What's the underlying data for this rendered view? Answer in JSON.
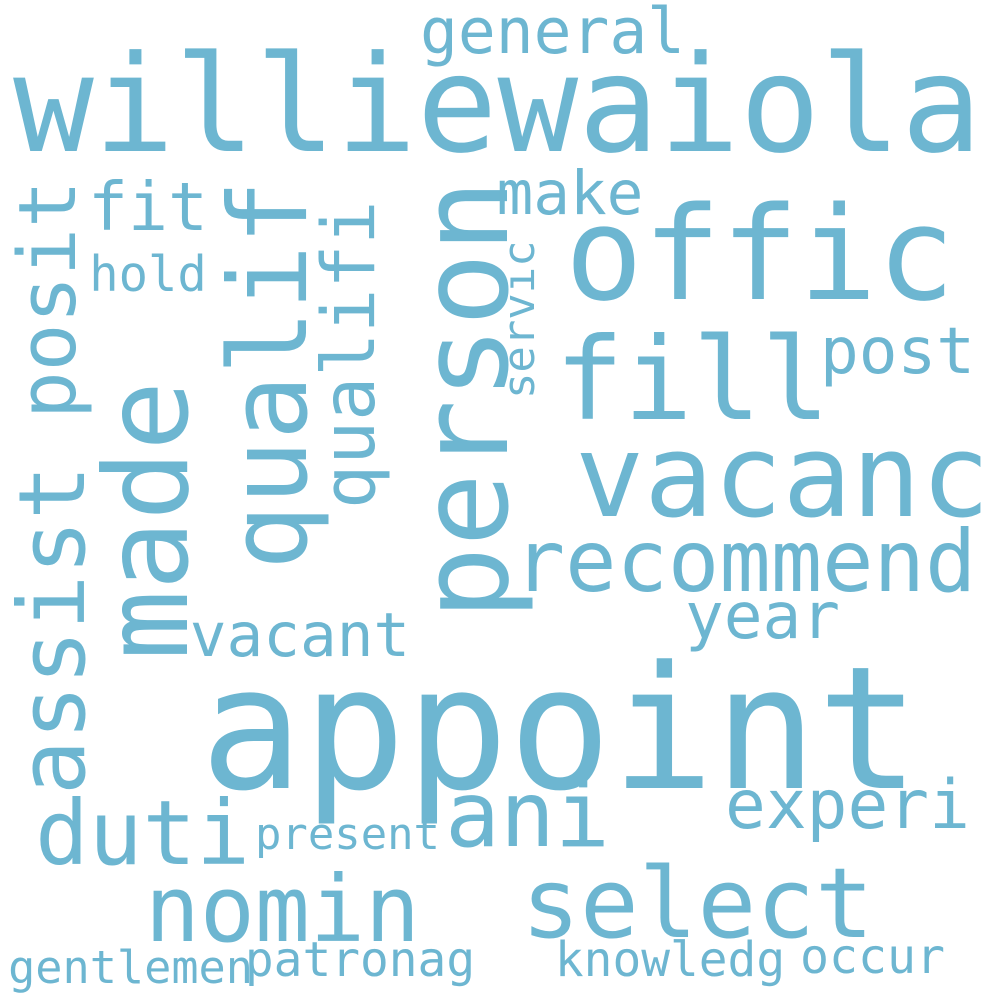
{
  "colors": {
    "background": "#ffffff",
    "word": "#6db6d1"
  },
  "words": [
    {
      "text": "williewaiola",
      "orientation": "horizontal"
    },
    {
      "text": "appoint",
      "orientation": "horizontal"
    },
    {
      "text": "offic",
      "orientation": "horizontal"
    },
    {
      "text": "fill",
      "orientation": "horizontal"
    },
    {
      "text": "vacanc",
      "orientation": "horizontal"
    },
    {
      "text": "person",
      "orientation": "vertical"
    },
    {
      "text": "recommend",
      "orientation": "horizontal"
    },
    {
      "text": "select",
      "orientation": "horizontal"
    },
    {
      "text": "made",
      "orientation": "vertical"
    },
    {
      "text": "qualif",
      "orientation": "vertical"
    },
    {
      "text": "qualifi",
      "orientation": "vertical"
    },
    {
      "text": "posit",
      "orientation": "vertical"
    },
    {
      "text": "assist",
      "orientation": "vertical"
    },
    {
      "text": "nomin",
      "orientation": "horizontal"
    },
    {
      "text": "duti",
      "orientation": "horizontal"
    },
    {
      "text": "ani",
      "orientation": "horizontal"
    },
    {
      "text": "general",
      "orientation": "horizontal"
    },
    {
      "text": "vacant",
      "orientation": "horizontal"
    },
    {
      "text": "post",
      "orientation": "horizontal"
    },
    {
      "text": "year",
      "orientation": "horizontal"
    },
    {
      "text": "experi",
      "orientation": "horizontal"
    },
    {
      "text": "make",
      "orientation": "horizontal"
    },
    {
      "text": "fit",
      "orientation": "horizontal"
    },
    {
      "text": "hold",
      "orientation": "horizontal"
    },
    {
      "text": "servic",
      "orientation": "vertical"
    },
    {
      "text": "present",
      "orientation": "horizontal"
    },
    {
      "text": "patronag",
      "orientation": "horizontal"
    },
    {
      "text": "gentlemen",
      "orientation": "horizontal"
    },
    {
      "text": "knowledg",
      "orientation": "horizontal"
    },
    {
      "text": "occur",
      "orientation": "horizontal"
    }
  ]
}
